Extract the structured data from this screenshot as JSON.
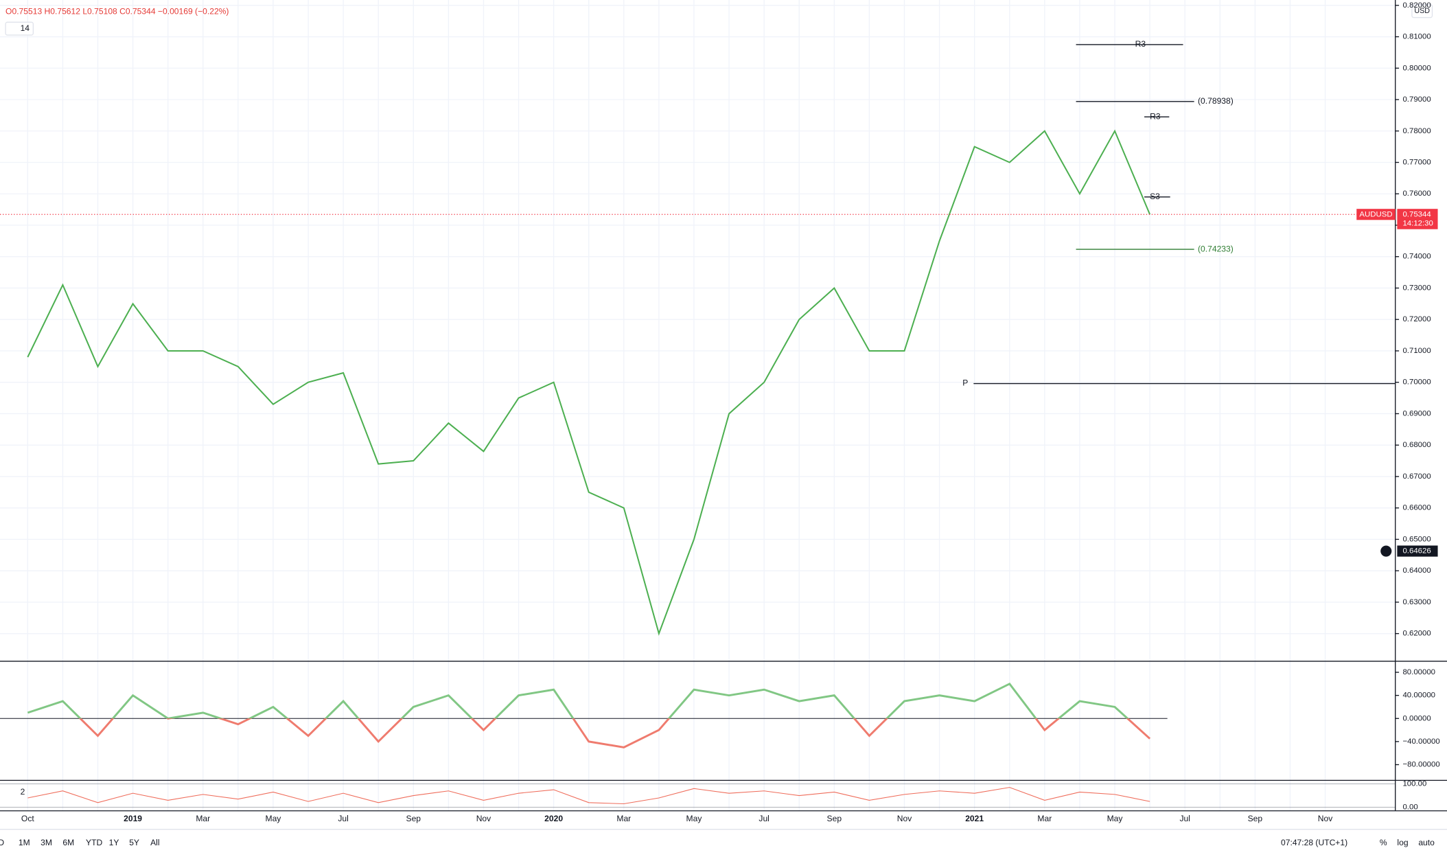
{
  "header": {
    "ohlc": "O0.75513 H0.75612 L0.75108 C0.75344 −0.00169 (−0.22%)",
    "indicator_length": "14",
    "currency": "USD"
  },
  "chart_data": {
    "type": "line",
    "categories": [
      "Oct",
      null,
      null,
      "2019",
      null,
      "Mar",
      null,
      "May",
      null,
      "Jul",
      null,
      "Sep",
      null,
      "Nov",
      null,
      "2020",
      null,
      "Mar",
      null,
      "May",
      null,
      "Jul",
      null,
      "Sep",
      null,
      "Nov",
      null,
      "2021",
      null,
      "Mar",
      null,
      "May",
      null,
      "Jul",
      null,
      "Sep",
      null,
      "Nov"
    ],
    "series": [
      {
        "name": "AUDUSD",
        "color": "#4caf50",
        "values": [
          0.708,
          0.731,
          0.705,
          0.725,
          0.71,
          0.71,
          0.705,
          0.693,
          0.7,
          0.703,
          0.674,
          0.675,
          0.687,
          0.678,
          0.695,
          0.7,
          0.665,
          0.66,
          0.62,
          0.65,
          0.69,
          0.7,
          0.72,
          0.73,
          0.71,
          0.71,
          0.745,
          0.775,
          0.77,
          0.78,
          0.76,
          0.78,
          0.75344,
          null,
          null,
          null,
          null,
          null
        ]
      }
    ],
    "ylim": [
      0.6112,
      0.8217
    ],
    "yticks": [
      {
        "value": 0.62,
        "label": "0.62000"
      },
      {
        "value": 0.63,
        "label": "0.63000"
      },
      {
        "value": 0.64,
        "label": "0.64000"
      },
      {
        "value": 0.65,
        "label": "0.65000"
      },
      {
        "value": 0.66,
        "label": "0.66000"
      },
      {
        "value": 0.67,
        "label": "0.67000"
      },
      {
        "value": 0.68,
        "label": "0.68000"
      },
      {
        "value": 0.69,
        "label": "0.69000"
      },
      {
        "value": 0.7,
        "label": "0.70000"
      },
      {
        "value": 0.71,
        "label": "0.71000"
      },
      {
        "value": 0.72,
        "label": "0.72000"
      },
      {
        "value": 0.73,
        "label": "0.73000"
      },
      {
        "value": 0.74,
        "label": "0.74000"
      },
      {
        "value": 0.75,
        "label": "0.75000"
      },
      {
        "value": 0.76,
        "label": "0.76000"
      },
      {
        "value": 0.77,
        "label": "0.77000"
      },
      {
        "value": 0.78,
        "label": "0.78000"
      },
      {
        "value": 0.79,
        "label": "0.79000"
      },
      {
        "value": 0.8,
        "label": "0.80000"
      },
      {
        "value": 0.81,
        "label": "0.81000"
      },
      {
        "value": 0.82,
        "label": "0.82000"
      }
    ],
    "grid": true,
    "levels": [
      {
        "label": "R3",
        "value": 0.8075,
        "color": "#131722"
      },
      {
        "label": "(0.78938)",
        "value": 0.78938,
        "color": "#131722"
      },
      {
        "label": "R3",
        "value": 0.7845,
        "color": "#131722"
      },
      {
        "label": "S3",
        "value": 0.759,
        "color": "#131722"
      },
      {
        "label": "(0.74233)",
        "value": 0.74233,
        "color": "#2e7d32"
      },
      {
        "label": "P",
        "value": 0.6996,
        "color": "#131722"
      }
    ],
    "last_price": {
      "symbol": "AUDUSD",
      "value": 0.75344,
      "label": "0.75344",
      "countdown": "14:12:30"
    },
    "crosshair": {
      "value": 0.64626,
      "label": "0.64626"
    },
    "oscillator": {
      "values": [
        10,
        30,
        -30,
        40,
        0,
        10,
        -10,
        20,
        -30,
        30,
        -40,
        20,
        40,
        -20,
        40,
        50,
        -40,
        -50,
        -20,
        50,
        40,
        50,
        30,
        40,
        -30,
        30,
        40,
        30,
        60,
        -20,
        30,
        20,
        -35,
        null,
        null,
        null,
        null,
        null
      ],
      "ylim": [
        -107.2,
        99.2
      ],
      "yticks": [
        {
          "value": 80,
          "label": "80.00000"
        },
        {
          "value": 40,
          "label": "40.00000"
        },
        {
          "value": 0,
          "label": "0.00000"
        },
        {
          "value": -40,
          "label": "−40.00000"
        },
        {
          "value": -80,
          "label": "−80.00000"
        }
      ],
      "up_color": "#81c784",
      "down_color": "#ef7b6e"
    },
    "stochastic": {
      "label": "2",
      "values": [
        40,
        70,
        20,
        60,
        30,
        55,
        35,
        65,
        25,
        60,
        20,
        50,
        70,
        30,
        60,
        75,
        20,
        15,
        40,
        80,
        60,
        70,
        50,
        65,
        30,
        55,
        70,
        60,
        85,
        30,
        65,
        55,
        25,
        null,
        null,
        null,
        null,
        null
      ],
      "color": "#ef6c5a",
      "ylim": [
        -15,
        115
      ],
      "yticks": [
        {
          "value": 100,
          "label": "100.00"
        },
        {
          "value": 0,
          "label": "0.00"
        }
      ]
    }
  },
  "toolbar": {
    "ranges": [
      "D",
      "1M",
      "3M",
      "6M",
      "YTD",
      "1Y",
      "5Y",
      "All"
    ],
    "clock": "07:47:28 (UTC+1)",
    "percent": "%",
    "log": "log",
    "auto": "auto"
  }
}
